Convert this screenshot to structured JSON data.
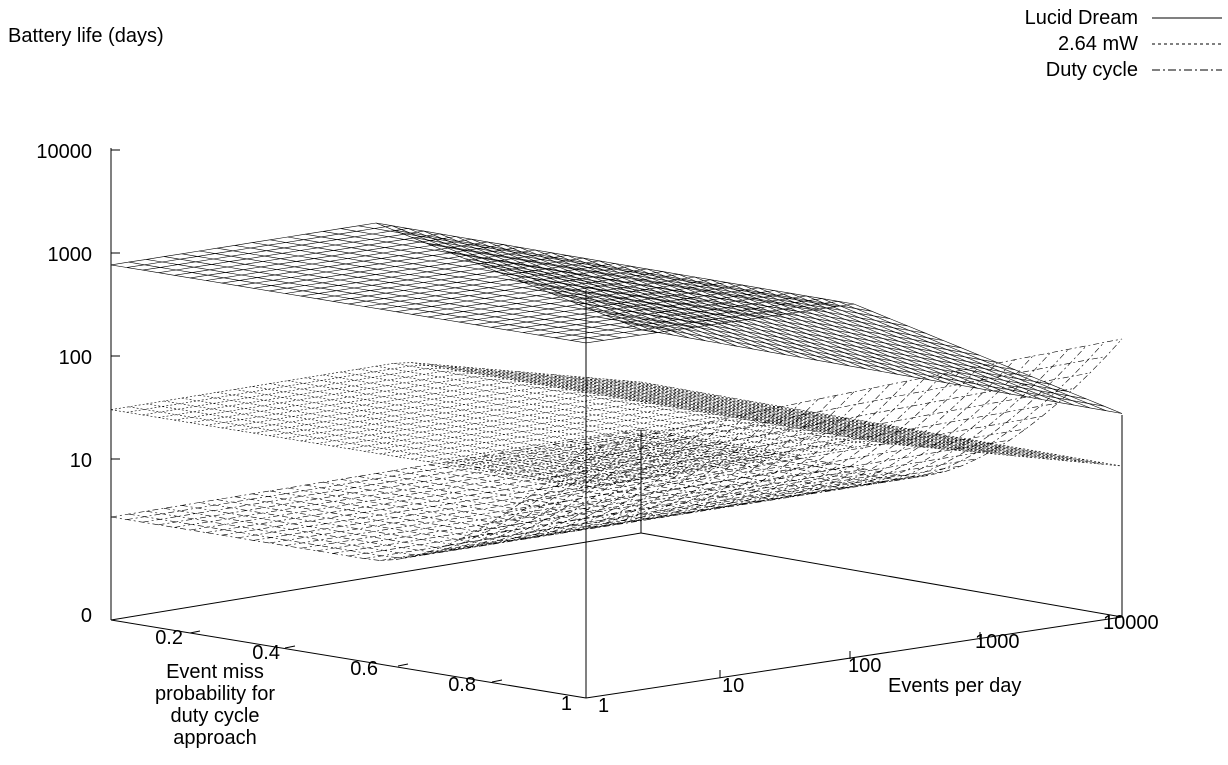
{
  "chart_data": {
    "type": "surface3d",
    "title": "",
    "zlabel": "Battery life (days)",
    "xlabel": "Events per day",
    "ylabel": "Event miss probability for duty cycle approach",
    "ylabel_lines": [
      "Event miss",
      "probability for",
      "duty cycle",
      "approach"
    ],
    "x_scale": "log",
    "z_scale": "log",
    "x_ticks": [
      "1",
      "10",
      "100",
      "1000",
      "10000"
    ],
    "x_tick_values": [
      1,
      10,
      100,
      1000,
      10000
    ],
    "y_ticks": [
      "0.2",
      "0.4",
      "0.6",
      "0.8",
      "1"
    ],
    "y_tick_values": [
      0.2,
      0.4,
      0.6,
      0.8,
      1.0
    ],
    "z_ticks": [
      "0",
      "10",
      "100",
      "1000",
      "10000"
    ],
    "z_tick_values": [
      0,
      10,
      100,
      1000,
      10000
    ],
    "xlim": [
      1,
      10000
    ],
    "ylim": [
      0.05,
      1.0
    ],
    "zlim": [
      1,
      10000
    ],
    "legend_position": "top-right",
    "series": [
      {
        "name": "Lucid Dream",
        "line_style": "solid",
        "description_points": [
          {
            "x": 1,
            "y_any": true,
            "z": 2800
          },
          {
            "x": 100,
            "z": 2600
          },
          {
            "x": 1000,
            "z": 1100
          },
          {
            "x": 10000,
            "z": 100
          }
        ]
      },
      {
        "name": "2.64 mW",
        "line_style": "dotted",
        "description_points": [
          {
            "x": 1,
            "y_any": true,
            "z": 110
          },
          {
            "x": 100,
            "z": 105
          },
          {
            "x": 1000,
            "z": 75
          },
          {
            "x": 10000,
            "z": 28
          }
        ]
      },
      {
        "name": "Duty cycle",
        "line_style": "dash-dot",
        "description_points": [
          {
            "x": 1,
            "y": 0.05,
            "z": 10
          },
          {
            "x": 1,
            "y": 1.0,
            "z": 260
          },
          {
            "x": 10000,
            "y": 1.0,
            "z": 500
          }
        ]
      }
    ]
  }
}
